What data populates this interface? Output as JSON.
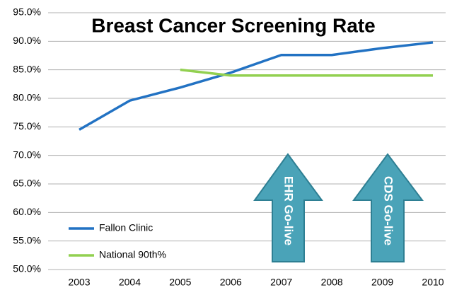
{
  "chart_data": {
    "type": "line",
    "title": "Breast Cancer Screening Rate",
    "categories": [
      "2003",
      "2004",
      "2005",
      "2006",
      "2007",
      "2008",
      "2009",
      "2010"
    ],
    "series": [
      {
        "name": "Fallon Clinic",
        "color": "#2272c3",
        "values": [
          74.5,
          79.6,
          81.9,
          84.5,
          87.6,
          87.6,
          88.8,
          89.8
        ]
      },
      {
        "name": "National 90th%",
        "color": "#92d050",
        "values": [
          null,
          null,
          85.0,
          84.0,
          84.0,
          84.0,
          84.0,
          84.0
        ]
      }
    ],
    "ylim": [
      50,
      95
    ],
    "yticks": [
      {
        "value": 50,
        "label": "50.0%"
      },
      {
        "value": 55,
        "label": "55.0%"
      },
      {
        "value": 60,
        "label": "60.0%"
      },
      {
        "value": 65,
        "label": "65.0%"
      },
      {
        "value": 70,
        "label": "70.0%"
      },
      {
        "value": 75,
        "label": "75.0%"
      },
      {
        "value": 80,
        "label": "80.0%"
      },
      {
        "value": 85,
        "label": "85.0%"
      },
      {
        "value": 90,
        "label": "90.0%"
      },
      {
        "value": 95,
        "label": "95.0%"
      }
    ],
    "grid": true,
    "legend": "lower left",
    "annotations": [
      "EHR Go-live",
      "CDS Go-live"
    ]
  }
}
